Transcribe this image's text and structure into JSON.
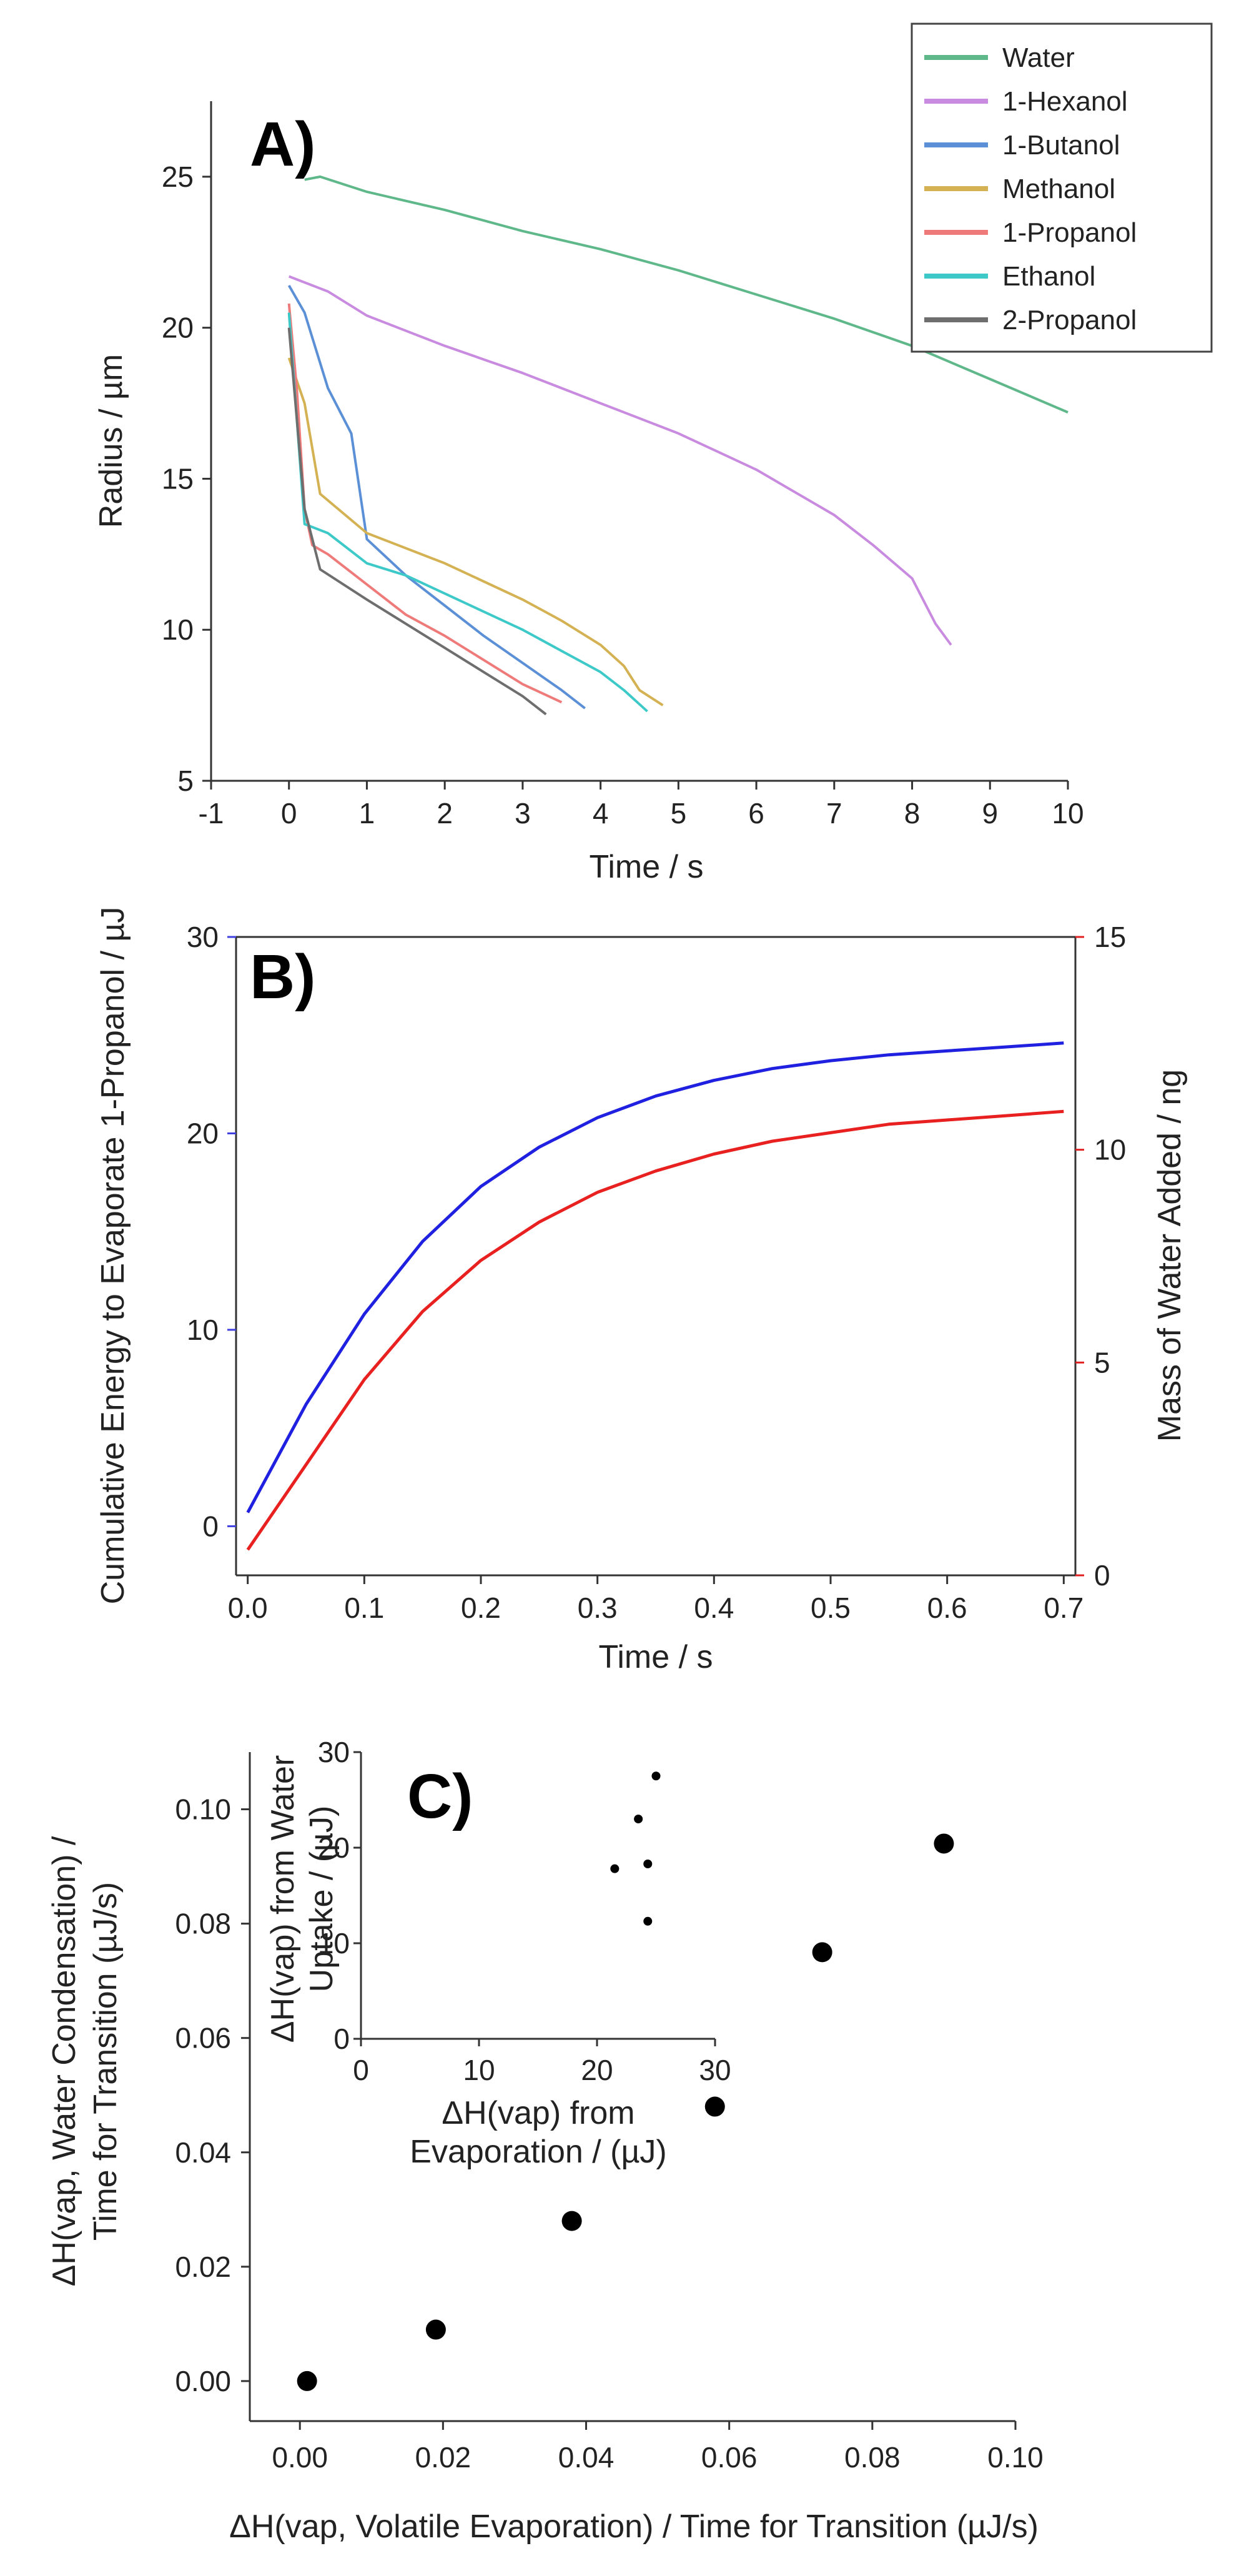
{
  "chart_data": [
    {
      "panel": "A)",
      "type": "line",
      "xlabel": "Time / s",
      "ylabel": "Radius / µm",
      "xlim": [
        -1,
        10
      ],
      "ylim": [
        5,
        27.5
      ],
      "xticks": [
        -1,
        0,
        1,
        2,
        3,
        4,
        5,
        6,
        7,
        8,
        9,
        10
      ],
      "yticks": [
        5,
        10,
        15,
        20,
        25
      ],
      "legend_position": "top-right",
      "series": [
        {
          "name": "Water",
          "color": "#5fb88a",
          "x": [
            0.2,
            0.4,
            1.0,
            2.0,
            3.0,
            4.0,
            5.0,
            6.0,
            7.0,
            8.0,
            9.0,
            10.0
          ],
          "y": [
            24.9,
            25.0,
            24.5,
            23.9,
            23.2,
            22.6,
            21.9,
            21.1,
            20.3,
            19.4,
            18.3,
            17.2
          ]
        },
        {
          "name": "1-Hexanol",
          "color": "#c98be0",
          "x": [
            0.0,
            0.5,
            1.0,
            2.0,
            3.0,
            4.0,
            5.0,
            6.0,
            7.0,
            7.5,
            8.0,
            8.3,
            8.5
          ],
          "y": [
            21.7,
            21.2,
            20.4,
            19.4,
            18.5,
            17.5,
            16.5,
            15.3,
            13.8,
            12.8,
            11.7,
            10.2,
            9.5
          ]
        },
        {
          "name": "1-Butanol",
          "color": "#5b8fd6",
          "x": [
            0.0,
            0.2,
            0.5,
            0.8,
            1.0,
            1.5,
            2.0,
            2.5,
            3.0,
            3.5,
            3.8
          ],
          "y": [
            21.4,
            20.5,
            18.0,
            16.5,
            13.0,
            11.8,
            10.8,
            9.8,
            8.9,
            8.0,
            7.4
          ]
        },
        {
          "name": "Methanol",
          "color": "#d4b254",
          "x": [
            0.0,
            0.2,
            0.4,
            1.0,
            2.0,
            3.0,
            3.5,
            4.0,
            4.3,
            4.5,
            4.8
          ],
          "y": [
            19.0,
            17.5,
            14.5,
            13.2,
            12.2,
            11.0,
            10.3,
            9.5,
            8.8,
            8.0,
            7.5
          ]
        },
        {
          "name": "1-Propanol",
          "color": "#ef7a7a",
          "x": [
            0.0,
            0.1,
            0.2,
            0.3,
            0.5,
            1.0,
            1.5,
            2.0,
            2.5,
            3.0,
            3.5
          ],
          "y": [
            20.8,
            18.0,
            14.0,
            12.8,
            12.5,
            11.5,
            10.5,
            9.8,
            9.0,
            8.2,
            7.6
          ]
        },
        {
          "name": "Ethanol",
          "color": "#3ec9c9",
          "x": [
            0.0,
            0.2,
            0.5,
            1.0,
            1.5,
            2.0,
            2.5,
            3.0,
            3.5,
            4.0,
            4.3,
            4.6
          ],
          "y": [
            20.5,
            13.5,
            13.2,
            12.2,
            11.8,
            11.2,
            10.6,
            10.0,
            9.3,
            8.6,
            8.0,
            7.3
          ]
        },
        {
          "name": "2-Propanol",
          "color": "#6e6e6e",
          "x": [
            0.0,
            0.2,
            0.4,
            1.0,
            1.5,
            2.0,
            2.5,
            3.0,
            3.3
          ],
          "y": [
            20.0,
            14.0,
            12.0,
            11.0,
            10.2,
            9.4,
            8.6,
            7.8,
            7.2
          ]
        }
      ]
    },
    {
      "panel": "B)",
      "type": "line",
      "xlabel": "Time / s",
      "ylabel": "Cumulative Energy to Evaporate 1-Propanol / µJ",
      "ylabel_color": "#3f3fe0",
      "y2label": "Mass of Water Added / ng",
      "y2label_color": "#e02020",
      "xlim": [
        -0.01,
        0.71
      ],
      "ylim": [
        -2.5,
        30
      ],
      "y2lim": [
        0,
        15
      ],
      "xticks": [
        0.0,
        0.1,
        0.2,
        0.3,
        0.4,
        0.5,
        0.6,
        0.7
      ],
      "yticks": [
        0,
        10,
        20,
        30
      ],
      "y2ticks": [
        0,
        5,
        10,
        15
      ],
      "series": [
        {
          "name": "Cumulative energy",
          "axis": "left",
          "color": "#2020e0",
          "x": [
            0.0,
            0.05,
            0.1,
            0.15,
            0.2,
            0.25,
            0.3,
            0.35,
            0.4,
            0.45,
            0.5,
            0.55,
            0.6,
            0.65,
            0.7
          ],
          "y": [
            0.7,
            6.2,
            10.8,
            14.5,
            17.3,
            19.3,
            20.8,
            21.9,
            22.7,
            23.3,
            23.7,
            24.0,
            24.2,
            24.4,
            24.6
          ]
        },
        {
          "name": "Mass of water added",
          "axis": "right",
          "color": "#e82020",
          "x": [
            0.0,
            0.05,
            0.1,
            0.15,
            0.2,
            0.25,
            0.3,
            0.35,
            0.4,
            0.45,
            0.5,
            0.55,
            0.6,
            0.65,
            0.7
          ],
          "y": [
            0.6,
            2.6,
            4.6,
            6.2,
            7.4,
            8.3,
            9.0,
            9.5,
            9.9,
            10.2,
            10.4,
            10.6,
            10.7,
            10.8,
            10.9
          ]
        }
      ]
    },
    {
      "panel": "C)",
      "type": "scatter",
      "xlabel": "ΔH(vap, Volatile Evaporation) / Time for Transition (µJ/s)",
      "ylabel_lines": [
        "ΔH(vap, Water Condensation) /",
        "Time for Transition (µJ/s)"
      ],
      "xlim": [
        -0.007,
        0.1
      ],
      "ylim": [
        -0.007,
        0.11
      ],
      "xticks": [
        0.0,
        0.02,
        0.04,
        0.06,
        0.08,
        0.1
      ],
      "xticklabels": [
        "0.00",
        "0.02",
        "0.04",
        "0.06",
        "0.08",
        "0.10"
      ],
      "yticks": [
        0.0,
        0.02,
        0.04,
        0.06,
        0.08,
        0.1
      ],
      "yticklabels": [
        "0.00",
        "0.02",
        "0.04",
        "0.06",
        "0.08",
        "0.10"
      ],
      "x": [
        0.001,
        0.019,
        0.038,
        0.058,
        0.073,
        0.09
      ],
      "y": [
        0.0,
        0.009,
        0.028,
        0.048,
        0.075,
        0.094
      ]
    },
    {
      "panel": "C) inset",
      "type": "scatter",
      "xlabel_lines": [
        "ΔH(vap) from",
        "Evaporation / (µJ)"
      ],
      "ylabel_lines": [
        "ΔH(vap) from Water",
        "Uptake / (µJ)"
      ],
      "xlim": [
        0,
        30
      ],
      "ylim": [
        0,
        30
      ],
      "xticks": [
        0,
        10,
        20,
        30
      ],
      "yticks": [
        0,
        10,
        20,
        30
      ],
      "x": [
        21.5,
        23.5,
        24.3,
        24.3,
        25.0
      ],
      "y": [
        17.8,
        23.0,
        18.3,
        12.3,
        27.5
      ]
    }
  ]
}
